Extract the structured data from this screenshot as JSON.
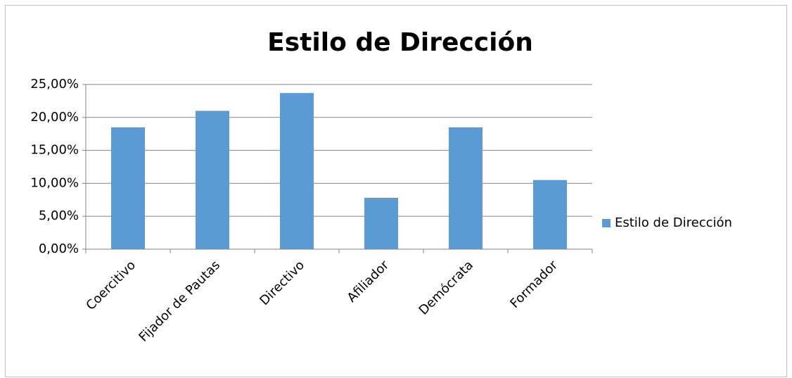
{
  "chart_data": {
    "type": "bar",
    "title": "Estilo de Dirección",
    "categories": [
      "Coercitivo",
      "Fijador de Pautas",
      "Directivo",
      "Afiliador",
      "Demócrata",
      "Formador"
    ],
    "series": [
      {
        "name": "Estilo de Dirección",
        "color": "#5b9bd5",
        "values": [
          18.5,
          21.0,
          23.7,
          7.8,
          18.5,
          10.5
        ]
      }
    ],
    "ylim": [
      0,
      25
    ],
    "yticks": [
      {
        "value": 0,
        "label": "0,00%"
      },
      {
        "value": 5,
        "label": "5,00%"
      },
      {
        "value": 10,
        "label": "10,00%"
      },
      {
        "value": 15,
        "label": "15,00%"
      },
      {
        "value": 20,
        "label": "20,00%"
      },
      {
        "value": 25,
        "label": "25,00%"
      }
    ],
    "grid": true,
    "legend": "right"
  }
}
